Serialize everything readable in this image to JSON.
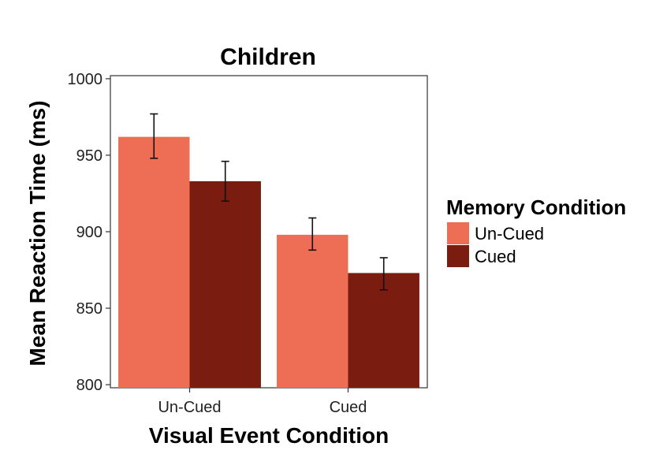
{
  "chart_data": {
    "type": "bar",
    "title": "Children",
    "xlabel": "Visual Event Condition",
    "ylabel": "Mean Reaction Time (ms)",
    "categories": [
      "Un-Cued",
      "Cued"
    ],
    "series": [
      {
        "name": "Un-Cued",
        "values": [
          962,
          898
        ],
        "errors": [
          [
            948,
            977
          ],
          [
            888,
            909
          ]
        ],
        "color": "#EE6E55"
      },
      {
        "name": "Cued",
        "values": [
          933,
          873
        ],
        "errors": [
          [
            920,
            946
          ],
          [
            862,
            883
          ]
        ],
        "color": "#7B1C10"
      }
    ],
    "ylim": [
      798,
      1002
    ],
    "yticks": [
      800,
      850,
      900,
      950,
      1000
    ],
    "legend": {
      "title": "Memory Condition",
      "position": "right"
    },
    "grid": false
  }
}
